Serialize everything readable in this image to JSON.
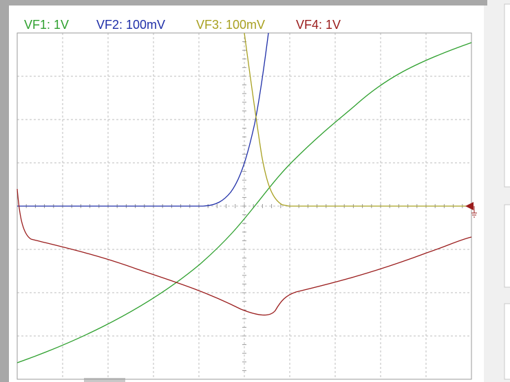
{
  "channels": [
    {
      "label": "VF1: 1V",
      "color": "#2ea02e"
    },
    {
      "label": "VF2: 100mV",
      "color": "#1f2fa8"
    },
    {
      "label": "VF3: 100mV",
      "color": "#a8a020"
    },
    {
      "label": "VF4: 1V",
      "color": "#9a1c1c"
    }
  ]
}
